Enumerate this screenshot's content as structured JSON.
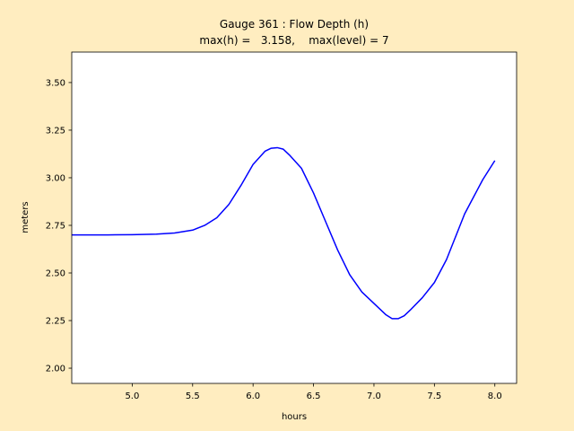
{
  "chart_data": {
    "type": "line",
    "title_line1": "Gauge 361 : Flow Depth (h)",
    "title_line2": "max(h) =   3.158,    max(level) = 7",
    "xlabel": "hours",
    "ylabel": "meters",
    "xlim": [
      4.5,
      8.18
    ],
    "ylim": [
      1.92,
      3.66
    ],
    "xticks": [
      5.0,
      5.5,
      6.0,
      6.5,
      7.0,
      7.5,
      8.0
    ],
    "xtick_labels": [
      "5.0",
      "5.5",
      "6.0",
      "6.5",
      "7.0",
      "7.5",
      "8.0"
    ],
    "yticks": [
      2.0,
      2.25,
      2.5,
      2.75,
      3.0,
      3.25,
      3.5
    ],
    "ytick_labels": [
      "2.00",
      "2.25",
      "2.50",
      "2.75",
      "3.00",
      "3.25",
      "3.50"
    ],
    "grid": false,
    "colors": {
      "line": "#0000ff",
      "figure_bg": "#ffedc0",
      "axes_bg": "#ffffff"
    },
    "series": [
      {
        "x": [
          4.5,
          4.8,
          5.0,
          5.2,
          5.35,
          5.5,
          5.6,
          5.7,
          5.8,
          5.9,
          6.0,
          6.1,
          6.15,
          6.2,
          6.25,
          6.3,
          6.4,
          6.5,
          6.6,
          6.7,
          6.8,
          6.9,
          7.0,
          7.1,
          7.15,
          7.2,
          7.25,
          7.3,
          7.4,
          7.5,
          7.6,
          7.7,
          7.75,
          7.8,
          7.85,
          7.9,
          7.95,
          8.0
        ],
        "y": [
          2.7,
          2.7,
          2.701,
          2.704,
          2.71,
          2.725,
          2.75,
          2.79,
          2.86,
          2.96,
          3.07,
          3.14,
          3.155,
          3.158,
          3.15,
          3.12,
          3.05,
          2.92,
          2.77,
          2.62,
          2.49,
          2.4,
          2.34,
          2.28,
          2.26,
          2.26,
          2.275,
          2.305,
          2.37,
          2.45,
          2.57,
          2.73,
          2.81,
          2.87,
          2.93,
          2.99,
          3.04,
          3.09
        ]
      }
    ]
  }
}
